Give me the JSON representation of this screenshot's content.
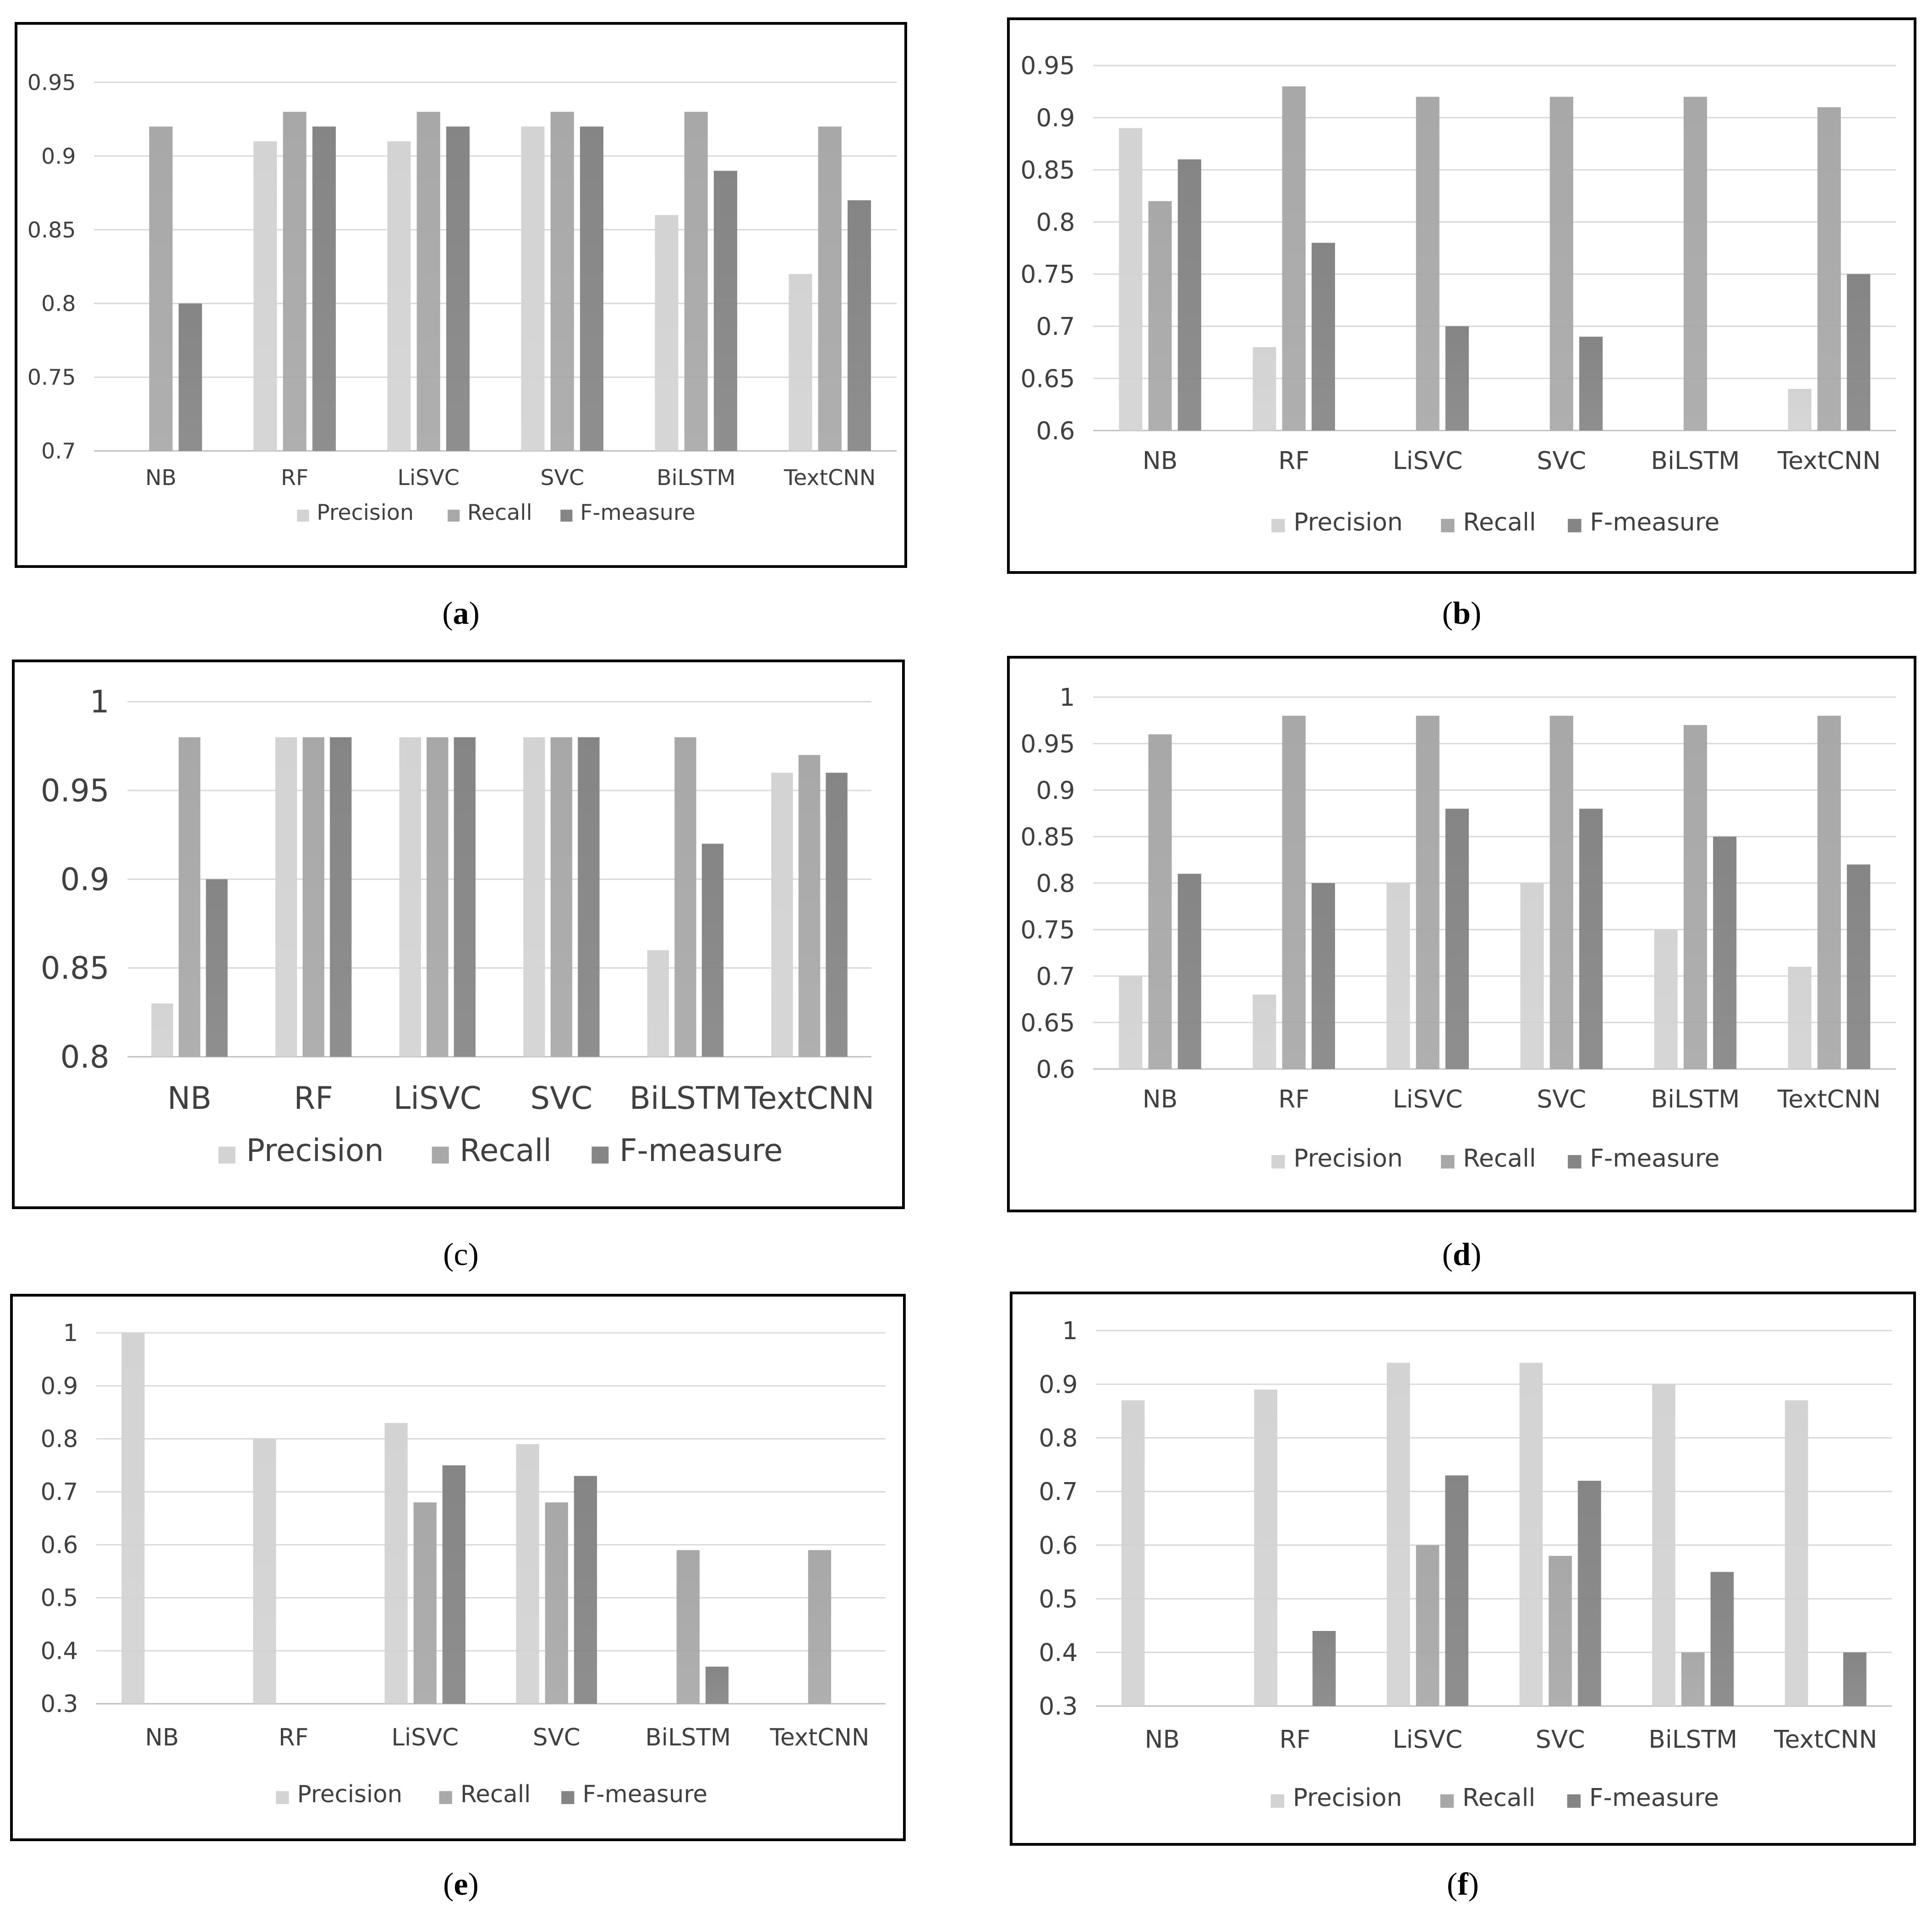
{
  "colors": {
    "precision": "#d3d3d3",
    "recall": "#a8a8a8",
    "fmeasure": "#858585",
    "grid": "#d9d9d9",
    "axis": "#bfbfbf"
  },
  "chart_data": [
    {
      "type": "bar",
      "label": "a",
      "categories": [
        "NB",
        "RF",
        "LiSVC",
        "SVC",
        "BiLSTM",
        "TextCNN"
      ],
      "ylim": [
        0.7,
        0.95
      ],
      "yticks": [
        "0.7",
        "0.75",
        "0.8",
        "0.85",
        "0.9",
        "0.95"
      ],
      "grid": true,
      "legend": "bottom",
      "series": [
        {
          "name": "Precision",
          "values": [
            0.7,
            0.91,
            0.91,
            0.92,
            0.86,
            0.82
          ]
        },
        {
          "name": "Recall",
          "values": [
            0.92,
            0.93,
            0.93,
            0.93,
            0.93,
            0.92
          ]
        },
        {
          "name": "F-measure",
          "values": [
            0.8,
            0.92,
            0.92,
            0.92,
            0.89,
            0.87
          ]
        }
      ]
    },
    {
      "type": "bar",
      "label": "b",
      "categories": [
        "NB",
        "RF",
        "LiSVC",
        "SVC",
        "BiLSTM",
        "TextCNN"
      ],
      "ylim": [
        0.6,
        0.95
      ],
      "yticks": [
        "0.6",
        "0.65",
        "0.7",
        "0.75",
        "0.8",
        "0.85",
        "0.9",
        "0.95"
      ],
      "grid": true,
      "legend": "bottom",
      "series": [
        {
          "name": "Precision",
          "values": [
            0.89,
            0.68,
            0.6,
            0.6,
            0.6,
            0.64
          ]
        },
        {
          "name": "Recall",
          "values": [
            0.82,
            0.93,
            0.92,
            0.92,
            0.92,
            0.91
          ]
        },
        {
          "name": "F-measure",
          "values": [
            0.86,
            0.78,
            0.7,
            0.69,
            0.6,
            0.75
          ]
        }
      ]
    },
    {
      "type": "bar",
      "label": "c",
      "categories": [
        "NB",
        "RF",
        "LiSVC",
        "SVC",
        "BiLSTM",
        "TextCNN"
      ],
      "ylim": [
        0.8,
        1.0
      ],
      "yticks": [
        "0.8",
        "0.85",
        "0.9",
        "0.95",
        "1"
      ],
      "grid": true,
      "legend": "bottom",
      "series": [
        {
          "name": "Precision",
          "values": [
            0.83,
            0.98,
            0.98,
            0.98,
            0.86,
            0.96
          ]
        },
        {
          "name": "Recall",
          "values": [
            0.98,
            0.98,
            0.98,
            0.98,
            0.98,
            0.97
          ]
        },
        {
          "name": "F-measure",
          "values": [
            0.9,
            0.98,
            0.98,
            0.98,
            0.92,
            0.96
          ]
        }
      ]
    },
    {
      "type": "bar",
      "label": "d",
      "categories": [
        "NB",
        "RF",
        "LiSVC",
        "SVC",
        "BiLSTM",
        "TextCNN"
      ],
      "ylim": [
        0.6,
        1.0
      ],
      "yticks": [
        "0.6",
        "0.65",
        "0.7",
        "0.75",
        "0.8",
        "0.85",
        "0.9",
        "0.95",
        "1"
      ],
      "grid": true,
      "legend": "bottom",
      "series": [
        {
          "name": "Precision",
          "values": [
            0.7,
            0.68,
            0.8,
            0.8,
            0.75,
            0.71
          ]
        },
        {
          "name": "Recall",
          "values": [
            0.96,
            0.98,
            0.98,
            0.98,
            0.97,
            0.98
          ]
        },
        {
          "name": "F-measure",
          "values": [
            0.81,
            0.8,
            0.88,
            0.88,
            0.85,
            0.82
          ]
        }
      ]
    },
    {
      "type": "bar",
      "label": "e",
      "categories": [
        "NB",
        "RF",
        "LiSVC",
        "SVC",
        "BiLSTM",
        "TextCNN"
      ],
      "ylim": [
        0.3,
        1.0
      ],
      "yticks": [
        "0.3",
        "0.4",
        "0.5",
        "0.6",
        "0.7",
        "0.8",
        "0.9",
        "1"
      ],
      "grid": true,
      "legend": "bottom",
      "series": [
        {
          "name": "Precision",
          "values": [
            1.0,
            0.8,
            0.83,
            0.79,
            0.3,
            0.3
          ]
        },
        {
          "name": "Recall",
          "values": [
            0.3,
            0.3,
            0.68,
            0.68,
            0.59,
            0.59
          ]
        },
        {
          "name": "F-measure",
          "values": [
            0.3,
            0.3,
            0.75,
            0.73,
            0.37,
            0.3
          ]
        }
      ]
    },
    {
      "type": "bar",
      "label": "f",
      "categories": [
        "NB",
        "RF",
        "LiSVC",
        "SVC",
        "BiLSTM",
        "TextCNN"
      ],
      "ylim": [
        0.3,
        1.0
      ],
      "yticks": [
        "0.3",
        "0.4",
        "0.5",
        "0.6",
        "0.7",
        "0.8",
        "0.9",
        "1"
      ],
      "grid": true,
      "legend": "bottom",
      "series": [
        {
          "name": "Precision",
          "values": [
            0.87,
            0.89,
            0.94,
            0.94,
            0.9,
            0.87
          ]
        },
        {
          "name": "Recall",
          "values": [
            0.3,
            0.3,
            0.6,
            0.58,
            0.4,
            0.3
          ]
        },
        {
          "name": "F-measure",
          "values": [
            0.3,
            0.44,
            0.73,
            0.72,
            0.55,
            0.4
          ]
        }
      ]
    }
  ]
}
